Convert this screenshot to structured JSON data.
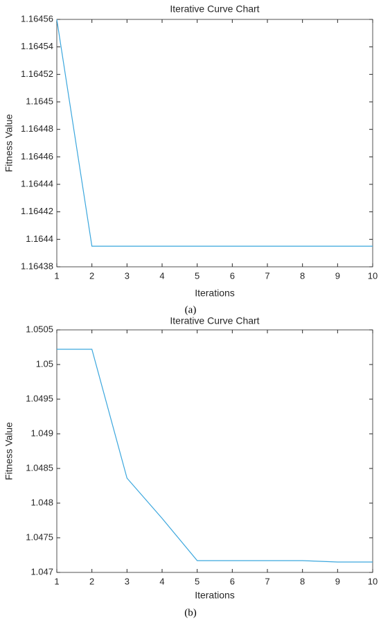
{
  "chart_data": [
    {
      "type": "line",
      "title": "Iterative Curve Chart",
      "x_label": "Iterations",
      "y_label": "Fitness Value",
      "caption": "(a)",
      "x": [
        1,
        2,
        3,
        4,
        5,
        6,
        7,
        8,
        9,
        10
      ],
      "series": [
        {
          "color": "#3aa6dd",
          "values": [
            1.16456,
            1.164395,
            1.164395,
            1.164395,
            1.164395,
            1.164395,
            1.164395,
            1.164395,
            1.164395,
            1.164395
          ]
        }
      ],
      "xlim": [
        1,
        10
      ],
      "xticks": [
        1,
        2,
        3,
        4,
        5,
        6,
        7,
        8,
        9,
        10
      ],
      "ylim": [
        1.16438,
        1.16456
      ],
      "yticks": [
        1.16438,
        1.1644,
        1.16442,
        1.16444,
        1.16446,
        1.16448,
        1.1645,
        1.16452,
        1.16454,
        1.16456
      ]
    },
    {
      "type": "line",
      "title": "Iterative Curve Chart",
      "x_label": "Iterations",
      "y_label": "Fitness Value",
      "caption": "(b)",
      "x": [
        1,
        2,
        3,
        4,
        5,
        6,
        7,
        8,
        9,
        10
      ],
      "series": [
        {
          "color": "#3aa6dd",
          "values": [
            1.05022,
            1.05022,
            1.04836,
            1.04778,
            1.04717,
            1.04717,
            1.04717,
            1.04717,
            1.04715,
            1.04715
          ]
        }
      ],
      "xlim": [
        1,
        10
      ],
      "xticks": [
        1,
        2,
        3,
        4,
        5,
        6,
        7,
        8,
        9,
        10
      ],
      "ylim": [
        1.047,
        1.0505
      ],
      "yticks": [
        1.047,
        1.0475,
        1.048,
        1.0485,
        1.049,
        1.0495,
        1.05,
        1.0505
      ]
    }
  ]
}
